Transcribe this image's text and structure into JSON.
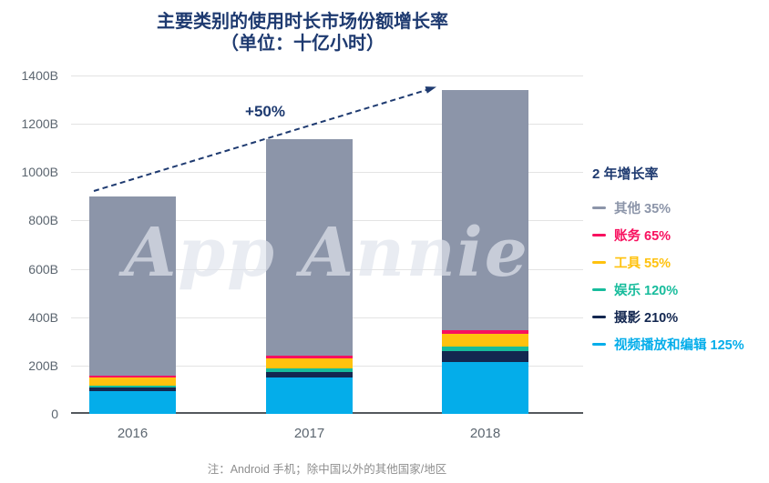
{
  "title": "主要类别的使用时长市场份额增长率",
  "subtitle": "（单位：十亿小时）",
  "annotation": {
    "growth_label": "+50%"
  },
  "watermark": "App Annie",
  "footnote": "注：Android 手机；除中国以外的其他国家/地区",
  "legend": {
    "title": "2 年增长率"
  },
  "colors": {
    "title_navy": "#1E3A70",
    "axis_text": "#5C6670",
    "gridline": "#E3E3E3",
    "baseline": "#54585D",
    "arrow": "#1E3A70",
    "footnote_gray": "#8E8E8E"
  },
  "chart_data": {
    "type": "bar",
    "stacked": true,
    "title": "主要类别的使用时长市场份额增长率",
    "subtitle": "（单位：十亿小时）",
    "categories": [
      "2016",
      "2017",
      "2018"
    ],
    "y_unit": "B",
    "ylim": [
      0,
      1400
    ],
    "yticks": [
      {
        "value": 0,
        "label": "0"
      },
      {
        "value": 200,
        "label": "200B"
      },
      {
        "value": 400,
        "label": "400B"
      },
      {
        "value": 600,
        "label": "600B"
      },
      {
        "value": 800,
        "label": "800B"
      },
      {
        "value": 1000,
        "label": "1000B"
      },
      {
        "value": 1200,
        "label": "1200B"
      },
      {
        "value": 1400,
        "label": "1400B"
      }
    ],
    "stack_order": "bottom_to_top",
    "series": [
      {
        "name": "视频播放和编辑",
        "growth": "125%",
        "color": "#04ADEA",
        "values": [
          95,
          150,
          215
        ]
      },
      {
        "name": "摄影",
        "growth": "210%",
        "color": "#132750",
        "values": [
          15,
          25,
          46
        ]
      },
      {
        "name": "娱乐",
        "growth": "120%",
        "color": "#17BC9C",
        "values": [
          8,
          12,
          18
        ]
      },
      {
        "name": "工具",
        "growth": "55%",
        "color": "#FFC20E",
        "values": [
          33,
          43,
          51
        ]
      },
      {
        "name": "账务",
        "growth": "65%",
        "color": "#F8115F",
        "values": [
          9,
          10,
          15
        ]
      },
      {
        "name": "其他",
        "growth": "35%",
        "color": "#8C95A9",
        "values": [
          740,
          895,
          995
        ]
      }
    ],
    "totals": [
      900,
      1135,
      1340
    ],
    "total_growth_annotation": "+50%",
    "grid": true,
    "legend_position": "right"
  }
}
